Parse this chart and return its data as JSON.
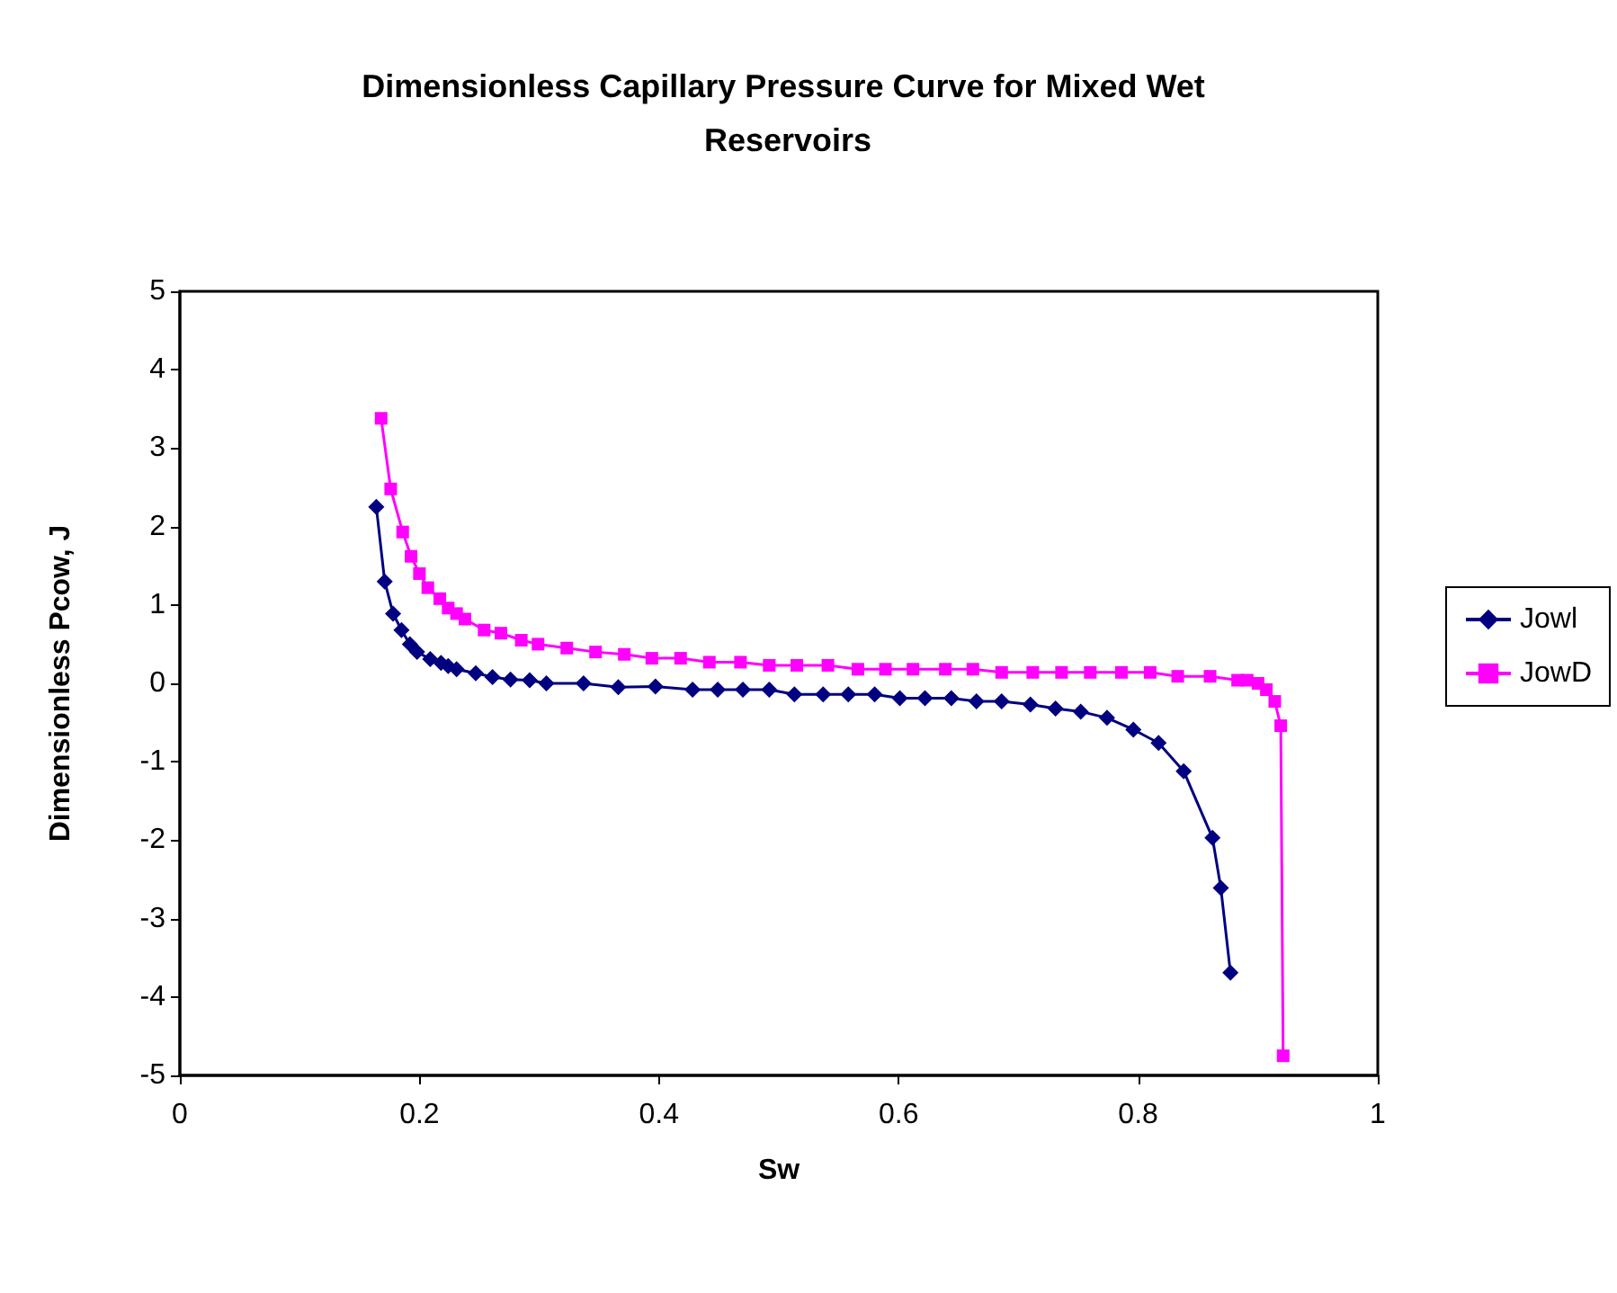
{
  "chart_data": {
    "type": "line",
    "title": "Dimensionless Capillary Pressure Curve for Mixed Wet Reservoirs",
    "xlabel": "Sw",
    "ylabel": "Dimensionless Pcow, J",
    "xlim": [
      0,
      1
    ],
    "xticks": [
      0,
      0.2,
      0.4,
      0.6,
      0.8,
      1
    ],
    "ylim": [
      -5,
      5
    ],
    "yticks": [
      -5,
      -4,
      -3,
      -2,
      -1,
      0,
      1,
      2,
      3,
      4,
      5
    ],
    "grid": false,
    "legend": "right",
    "series": [
      {
        "name": "Jowl",
        "color": "#000080",
        "marker": "diamond",
        "x": [
          0.164,
          0.171,
          0.178,
          0.185,
          0.192,
          0.198,
          0.209,
          0.218,
          0.224,
          0.231,
          0.247,
          0.261,
          0.276,
          0.292,
          0.306,
          0.337,
          0.366,
          0.397,
          0.428,
          0.449,
          0.47,
          0.492,
          0.513,
          0.537,
          0.558,
          0.58,
          0.601,
          0.622,
          0.644,
          0.665,
          0.686,
          0.71,
          0.731,
          0.752,
          0.774,
          0.796,
          0.817,
          0.838,
          0.862,
          0.869,
          0.877
        ],
        "values": [
          2.25,
          1.3,
          0.89,
          0.68,
          0.5,
          0.4,
          0.31,
          0.26,
          0.22,
          0.18,
          0.13,
          0.08,
          0.05,
          0.04,
          0,
          0,
          -0.05,
          -0.04,
          -0.08,
          -0.08,
          -0.08,
          -0.08,
          -0.14,
          -0.14,
          -0.14,
          -0.14,
          -0.19,
          -0.19,
          -0.19,
          -0.23,
          -0.23,
          -0.27,
          -0.32,
          -0.36,
          -0.44,
          -0.59,
          -0.76,
          -1.12,
          -1.97,
          -2.61,
          -3.69
        ]
      },
      {
        "name": "JowD",
        "color": "#ff00ff",
        "marker": "square",
        "x": [
          0.168,
          0.176,
          0.186,
          0.193,
          0.2,
          0.207,
          0.217,
          0.224,
          0.231,
          0.238,
          0.254,
          0.268,
          0.285,
          0.299,
          0.323,
          0.347,
          0.371,
          0.394,
          0.418,
          0.442,
          0.468,
          0.492,
          0.515,
          0.541,
          0.566,
          0.589,
          0.612,
          0.639,
          0.662,
          0.686,
          0.712,
          0.736,
          0.76,
          0.786,
          0.81,
          0.833,
          0.86,
          0.883,
          0.891,
          0.9,
          0.907,
          0.914,
          0.919,
          0.921
        ],
        "values": [
          3.38,
          2.48,
          1.93,
          1.62,
          1.4,
          1.22,
          1.08,
          0.96,
          0.89,
          0.82,
          0.68,
          0.64,
          0.55,
          0.5,
          0.45,
          0.4,
          0.37,
          0.32,
          0.32,
          0.27,
          0.27,
          0.23,
          0.23,
          0.23,
          0.18,
          0.18,
          0.18,
          0.18,
          0.18,
          0.14,
          0.14,
          0.14,
          0.14,
          0.14,
          0.14,
          0.09,
          0.09,
          0.04,
          0.04,
          0,
          -0.08,
          -0.23,
          -0.54,
          -4.75
        ]
      }
    ]
  }
}
